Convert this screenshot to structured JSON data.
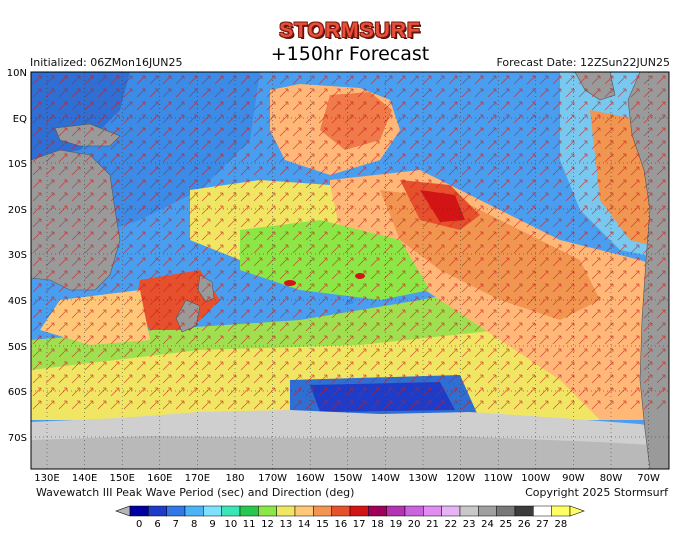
{
  "header": {
    "logo_text": "STORMSURF",
    "forecast_label": "+150hr Forecast",
    "initialized": "Initialized: 06ZMon16JUN25",
    "forecast_date": "Forecast Date: 12ZSun22JUN25"
  },
  "map": {
    "lat_labels": [
      "10N",
      "EQ",
      "10S",
      "20S",
      "30S",
      "40S",
      "50S",
      "60S",
      "70S"
    ],
    "lon_labels": [
      "130E",
      "140E",
      "150E",
      "160E",
      "170E",
      "180",
      "170W",
      "160W",
      "150W",
      "140W",
      "130W",
      "120W",
      "110W",
      "100W",
      "90W",
      "80W",
      "70W"
    ]
  },
  "footer": {
    "description": "Wavewatch III Peak Wave Period (sec) and Direction (deg)",
    "copyright": "Copyright 2025 Stormsurf"
  },
  "legend": {
    "labels": [
      "0",
      "6",
      "7",
      "8",
      "9",
      "10",
      "11",
      "12",
      "13",
      "14",
      "15",
      "16",
      "17",
      "18",
      "19",
      "20",
      "21",
      "22",
      "23",
      "24",
      "25",
      "26",
      "27",
      "28"
    ],
    "colors": [
      "#0000a0",
      "#1e3cc8",
      "#2f78e6",
      "#4bb4f5",
      "#7de1ff",
      "#3ce6b4",
      "#28c850",
      "#8ce646",
      "#f0e664",
      "#ffc878",
      "#f09650",
      "#e6502d",
      "#d21414",
      "#a0005a",
      "#b432b4",
      "#c864dc",
      "#e08cf0",
      "#e6b4f5",
      "#c8c8c8",
      "#a0a0a0",
      "#787878",
      "#3c3c3c",
      "#ffffff",
      "#ffff64"
    ]
  },
  "theme": {
    "land": "#9a9a9a",
    "ice": "#cfcfcf",
    "ocean_swell": "#ffb878",
    "ocean_long": "#f07a4a",
    "ocean_short": "#78c8f0",
    "arrow_color": "#c81e1e"
  }
}
